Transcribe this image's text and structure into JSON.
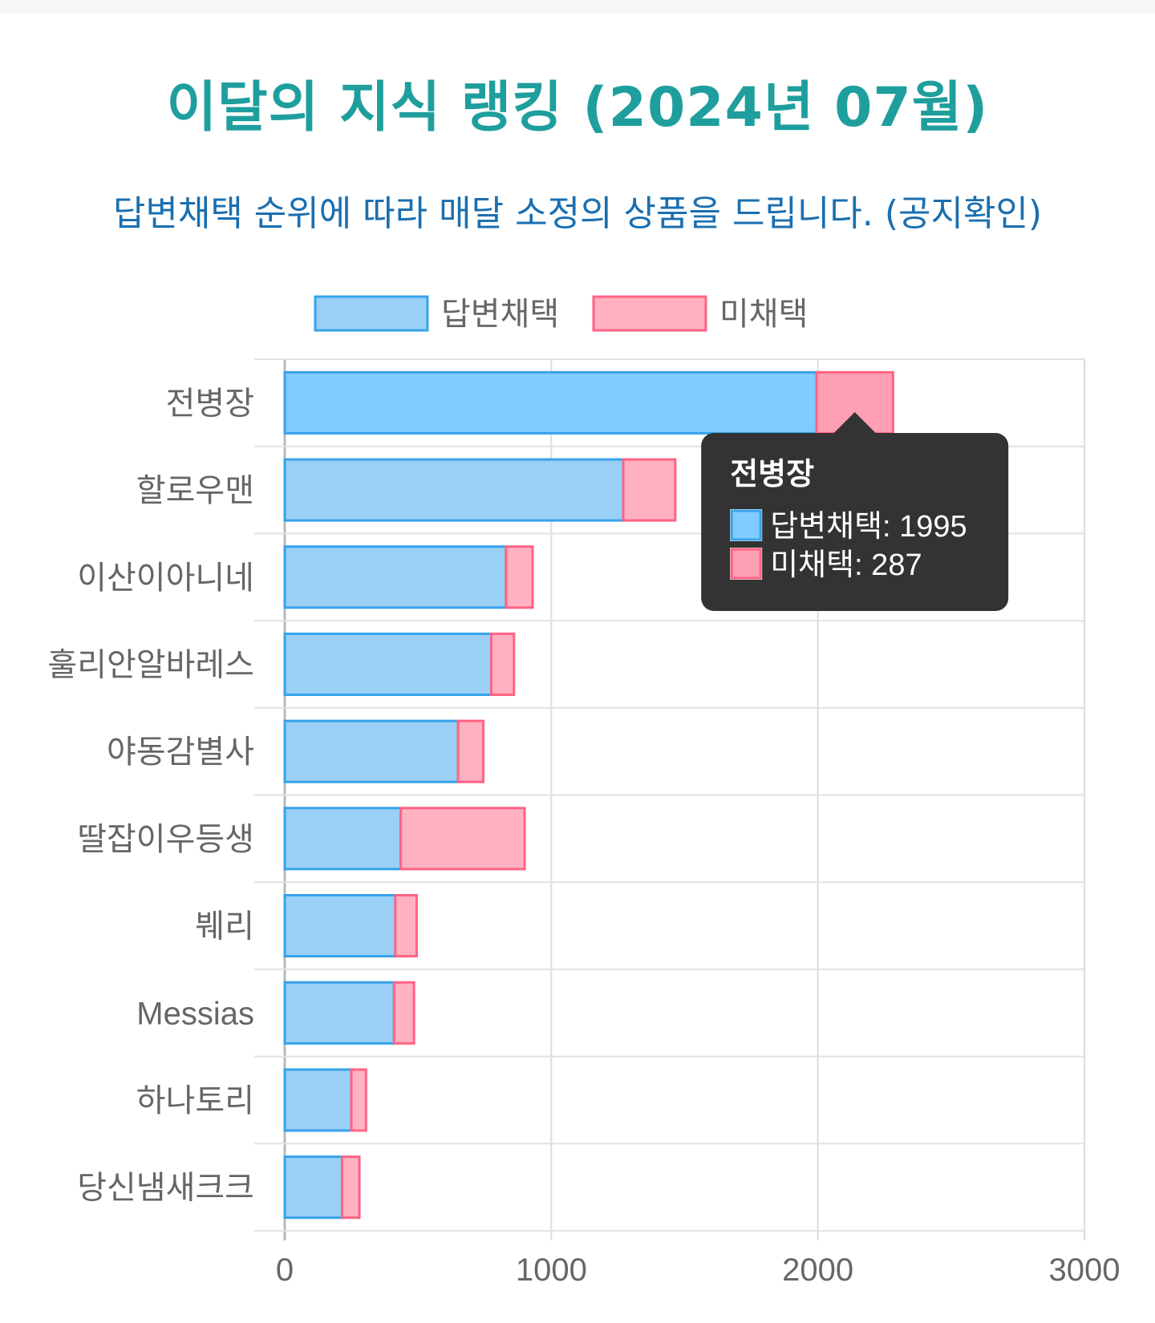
{
  "header": {
    "title": "이달의 지식 랭킹 (2024년 07월)",
    "subtitle_main": "답변채택 순위에 따라 매달 소정의 상품을 드립니다.",
    "subtitle_link": "(공지확인)"
  },
  "colors": {
    "title": "#1f9e9e",
    "subtitle": "#1a6fb0",
    "adopted_fill": "#9ad0f5",
    "adopted_fill_active": "#80cbff",
    "adopted_stroke": "#36a2eb",
    "unadopted_fill": "#ffb1c1",
    "unadopted_fill_active": "#ff9fb4",
    "unadopted_stroke": "#ff6384",
    "tooltip_bg": "#333333"
  },
  "chart_data": {
    "type": "bar",
    "orientation": "horizontal",
    "stacked": true,
    "categories": [
      "전병장",
      "할로우맨",
      "이산이아니네",
      "훌리안알바레스",
      "야동감별사",
      "딸잡이우등생",
      "붸리",
      "Messias",
      "하나토리",
      "당신냄새크크"
    ],
    "series": [
      {
        "name": "답변채택",
        "values": [
          1995,
          1270,
          830,
          775,
          650,
          435,
          415,
          410,
          250,
          215
        ]
      },
      {
        "name": "미채택",
        "values": [
          287,
          195,
          100,
          85,
          95,
          465,
          80,
          75,
          55,
          65
        ]
      }
    ],
    "xlim": [
      0,
      3000
    ],
    "x_ticks": [
      "0",
      "1000",
      "2000",
      "3000"
    ],
    "grid": true,
    "legend": "top-center",
    "tooltip": {
      "category": "전병장",
      "lines": [
        "답변채택: 1995",
        "미채택: 287"
      ]
    }
  }
}
